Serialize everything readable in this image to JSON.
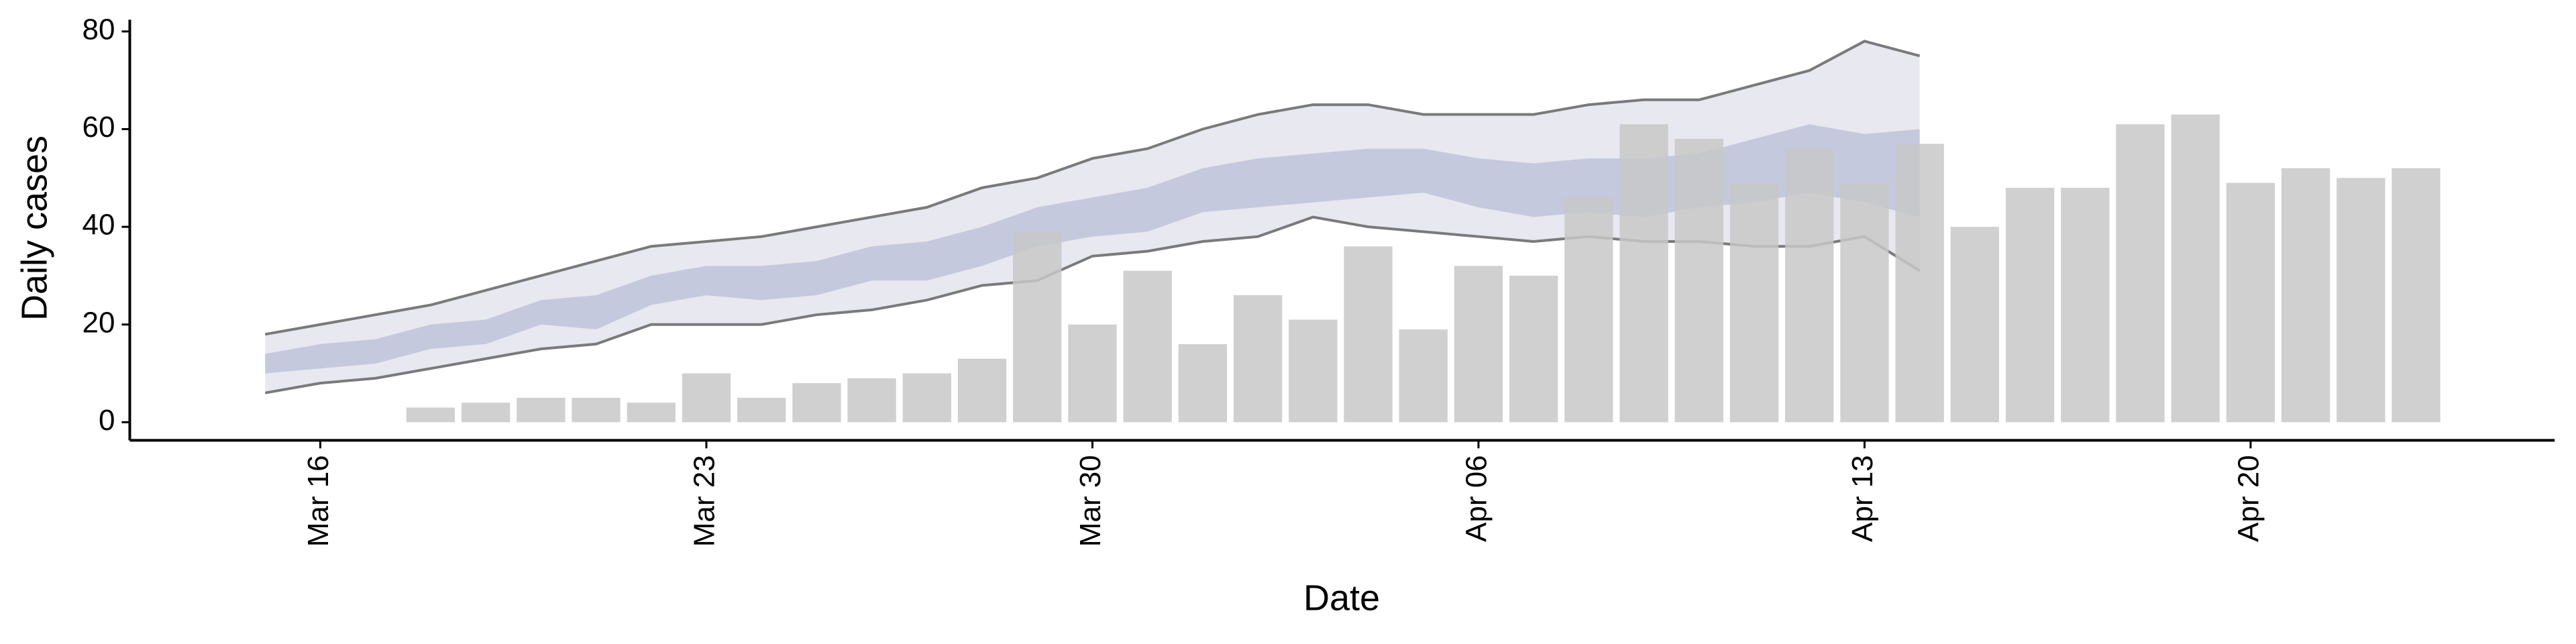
{
  "chart_data": {
    "type": "bar",
    "x_label": "Date",
    "y_label": "Daily cases",
    "categories": [
      null,
      "Mar 16",
      null,
      null,
      null,
      null,
      null,
      null,
      "Mar 23",
      null,
      null,
      null,
      null,
      null,
      null,
      "Mar 30",
      null,
      null,
      null,
      null,
      null,
      null,
      "Apr 06",
      null,
      null,
      null,
      null,
      null,
      null,
      "Apr 13",
      null,
      null,
      null,
      null,
      null,
      null,
      "Apr 20",
      null,
      null,
      null
    ],
    "bars": {
      "color": "#c8c8c8",
      "values": [
        null,
        null,
        null,
        3,
        4,
        5,
        5,
        4,
        10,
        5,
        8,
        9,
        10,
        13,
        39,
        20,
        31,
        16,
        26,
        21,
        36,
        19,
        32,
        30,
        46,
        61,
        58,
        49,
        56,
        49,
        57,
        40,
        48,
        48,
        61,
        63,
        49,
        52,
        50,
        52
      ]
    },
    "bands": [
      {
        "color": "#e7e8f0",
        "line_color": "#7a7a7a",
        "upper": [
          18,
          20,
          22,
          24,
          27,
          30,
          33,
          36,
          37,
          38,
          40,
          42,
          44,
          48,
          50,
          54,
          56,
          60,
          63,
          65,
          65,
          63,
          63,
          63,
          65,
          66,
          66,
          69,
          72,
          78,
          75,
          null,
          null,
          null,
          null,
          null,
          null,
          null,
          null,
          null
        ],
        "lower": [
          6,
          8,
          9,
          11,
          13,
          15,
          16,
          20,
          20,
          20,
          22,
          23,
          25,
          28,
          29,
          34,
          35,
          37,
          38,
          42,
          40,
          39,
          38,
          37,
          38,
          37,
          37,
          36,
          36,
          38,
          31,
          null,
          null,
          null,
          null,
          null,
          null,
          null,
          null,
          null
        ]
      },
      {
        "color": "#c4c9dd",
        "upper": [
          14,
          16,
          17,
          20,
          21,
          25,
          26,
          30,
          32,
          32,
          33,
          36,
          37,
          40,
          44,
          46,
          48,
          52,
          54,
          55,
          56,
          56,
          54,
          53,
          54,
          54,
          55,
          58,
          61,
          59,
          60,
          null,
          null,
          null,
          null,
          null,
          null,
          null,
          null,
          null
        ],
        "lower": [
          10,
          11,
          12,
          15,
          16,
          20,
          19,
          24,
          26,
          25,
          26,
          29,
          29,
          32,
          36,
          38,
          39,
          43,
          44,
          45,
          46,
          47,
          44,
          42,
          43,
          42,
          44,
          45,
          47,
          45,
          42,
          null,
          null,
          null,
          null,
          null,
          null,
          null,
          null,
          null
        ]
      }
    ],
    "ylim": [
      -3.7,
      82.4
    ],
    "yticks": [
      0,
      20,
      40,
      60,
      80
    ]
  }
}
